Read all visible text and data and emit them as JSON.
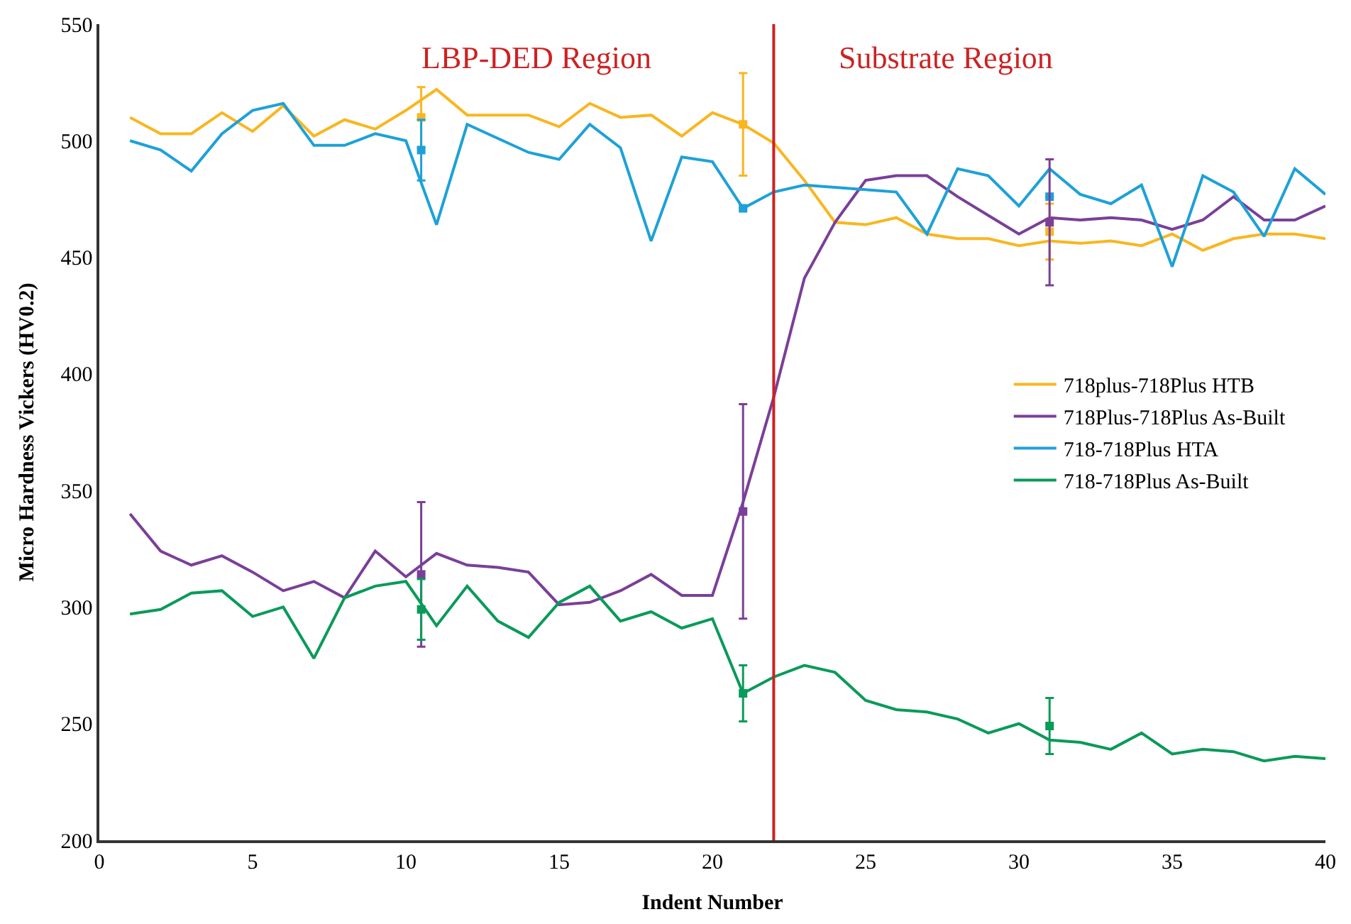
{
  "chart_data": {
    "type": "line",
    "xlabel": "Indent Number",
    "ylabel": "Micro Hardness Vickers (HV0.2)",
    "xlim": [
      0,
      40
    ],
    "xticks": [
      0,
      5,
      10,
      15,
      20,
      25,
      30,
      35,
      40
    ],
    "ylim": [
      200,
      550
    ],
    "yticks": [
      200,
      250,
      300,
      350,
      400,
      450,
      500,
      550
    ],
    "legend": "right",
    "marker": "none",
    "line_style": "solid",
    "x": [
      1,
      2,
      3,
      4,
      5,
      6,
      7,
      8,
      9,
      10,
      11,
      12,
      13,
      14,
      15,
      16,
      17,
      18,
      19,
      20,
      21,
      22,
      23,
      24,
      25,
      26,
      27,
      28,
      29,
      30,
      31,
      32,
      33,
      34,
      35,
      36,
      37,
      38,
      39,
      40
    ],
    "series": [
      {
        "name": "718plus-718Plus HTB",
        "color": "#f9b620",
        "values": [
          510,
          503,
          503,
          512,
          504,
          515,
          502,
          509,
          505,
          513,
          522,
          511,
          511,
          511,
          506,
          516,
          510,
          511,
          502,
          512,
          507,
          499,
          483,
          465,
          464,
          467,
          460,
          458,
          458,
          455,
          457,
          456,
          457,
          455,
          460,
          453,
          458,
          460,
          460,
          458
        ]
      },
      {
        "name": "718Plus-718Plus As-Built",
        "color": "#7a3f98",
        "values": [
          340,
          324,
          318,
          322,
          315,
          307,
          311,
          304,
          324,
          313,
          323,
          318,
          317,
          315,
          301,
          302,
          307,
          314,
          305,
          305,
          345,
          390,
          441,
          465,
          483,
          485,
          485,
          476,
          468,
          460,
          467,
          466,
          467,
          466,
          462,
          466,
          476,
          466,
          466,
          472
        ]
      },
      {
        "name": "718-718Plus HTA",
        "color": "#1da1d8",
        "values": [
          500,
          496,
          487,
          503,
          513,
          516,
          498,
          498,
          503,
          500,
          464,
          507,
          501,
          495,
          492,
          507,
          497,
          457,
          493,
          491,
          471,
          478,
          481,
          480,
          479,
          478,
          460,
          488,
          485,
          472,
          488,
          477,
          473,
          481,
          446,
          485,
          478,
          459,
          488,
          477
        ]
      },
      {
        "name": "718-718Plus As-Built",
        "color": "#0a9a5a",
        "values": [
          297,
          299,
          306,
          307,
          296,
          300,
          278,
          304,
          309,
          311,
          292,
          309,
          294,
          287,
          302,
          309,
          294,
          298,
          291,
          295,
          263,
          270,
          275,
          272,
          260,
          256,
          255,
          252,
          246,
          250,
          243,
          242,
          239,
          246,
          237,
          239,
          238,
          234,
          236,
          235
        ]
      },
      {
        "type": "scatter",
        "marker": "square",
        "color": "#f9b620",
        "x": [
          10.5,
          21,
          31
        ],
        "values": [
          510,
          507,
          461
        ],
        "errors": [
          13,
          22,
          12
        ]
      },
      {
        "type": "scatter",
        "marker": "square",
        "color": "#1da1d8",
        "x": [
          10.5,
          21,
          31
        ],
        "values": [
          496,
          471,
          476
        ],
        "errors": [
          13,
          null,
          null
        ]
      },
      {
        "type": "scatter",
        "marker": "square",
        "color": "#7a3f98",
        "x": [
          10.5,
          21,
          31
        ],
        "values": [
          314,
          341,
          465
        ],
        "errors": [
          31,
          46,
          27
        ]
      },
      {
        "type": "scatter",
        "marker": "square",
        "color": "#0a9a5a",
        "x": [
          10.5,
          21,
          31
        ],
        "values": [
          299,
          263,
          249
        ],
        "errors": [
          13,
          12,
          12
        ]
      }
    ],
    "ref_lines": [
      {
        "axis": "x",
        "value": 22,
        "label": null,
        "color": "#cc2222",
        "line_style": "solid"
      }
    ],
    "annotations": [
      "LBP-DED Region",
      "Substrate Region"
    ]
  }
}
